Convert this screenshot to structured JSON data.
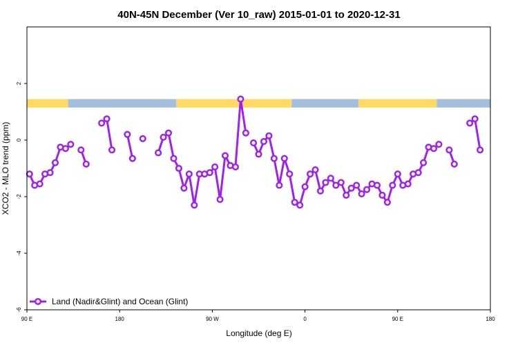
{
  "chart_data": {
    "type": "line",
    "title": "40N-45N December (Ver 10_raw)   2015-01-01 to 2020-12-31",
    "xlabel": "Longitude (deg E)",
    "ylabel": "XCO2 - MLO trend (ppm)",
    "xlim": [
      90,
      540
    ],
    "ylim": [
      -6,
      4
    ],
    "x_ticks": [
      {
        "value": 90,
        "label": "90 E"
      },
      {
        "value": 180,
        "label": "180"
      },
      {
        "value": 270,
        "label": "90 W"
      },
      {
        "value": 360,
        "label": "0"
      },
      {
        "value": 450,
        "label": "90 E"
      },
      {
        "value": 540,
        "label": "180"
      }
    ],
    "y_ticks": [
      {
        "value": -6,
        "label": "-6"
      },
      {
        "value": -4,
        "label": "-4"
      },
      {
        "value": -2,
        "label": "-2"
      },
      {
        "value": 0,
        "label": "0"
      },
      {
        "value": 2,
        "label": "2"
      }
    ],
    "legend": {
      "position": "bottom-left"
    },
    "series": [
      {
        "name": "Land (Nadir&Glint) and Ocean (Glint)",
        "color": "#a020f0",
        "segments": [
          [
            [
              92.5,
              -1.2
            ],
            [
              97.5,
              -1.6
            ],
            [
              102.5,
              -1.55
            ],
            [
              107.5,
              -1.2
            ],
            [
              112.5,
              -1.15
            ],
            [
              117.5,
              -0.8
            ],
            [
              122.5,
              -0.25
            ],
            [
              127.5,
              -0.3
            ],
            [
              132.5,
              -0.15
            ]
          ],
          [
            [
              142.5,
              -0.35
            ],
            [
              147.5,
              -0.85
            ]
          ],
          [
            [
              162.5,
              0.6
            ],
            [
              167.5,
              0.75
            ],
            [
              172.5,
              -0.35
            ]
          ],
          [
            [
              187.5,
              0.2
            ],
            [
              192.5,
              -0.65
            ]
          ],
          [
            [
              202.5,
              0.05
            ]
          ],
          [
            [
              217.5,
              -0.45
            ],
            [
              222.5,
              0.1
            ],
            [
              227.5,
              0.25
            ],
            [
              232.5,
              -0.65
            ],
            [
              237.5,
              -1.0
            ],
            [
              242.5,
              -1.7
            ],
            [
              247.5,
              -1.2
            ],
            [
              252.5,
              -2.3
            ],
            [
              257.5,
              -1.2
            ],
            [
              262.5,
              -1.2
            ],
            [
              267.5,
              -1.15
            ],
            [
              272.5,
              -0.95
            ],
            [
              277.5,
              -2.1
            ],
            [
              282.5,
              -0.55
            ],
            [
              287.5,
              -0.9
            ],
            [
              292.5,
              -0.95
            ],
            [
              297.5,
              1.45
            ],
            [
              302.5,
              0.25
            ]
          ],
          [
            [
              310,
              -0.1
            ],
            [
              315,
              -0.5
            ],
            [
              320,
              -0.05
            ],
            [
              325,
              0.15
            ],
            [
              330,
              -0.65
            ],
            [
              335,
              -1.6
            ],
            [
              340,
              -0.65
            ],
            [
              345,
              -1.2
            ],
            [
              350,
              -2.2
            ],
            [
              355,
              -2.3
            ],
            [
              360,
              -1.65
            ],
            [
              365,
              -1.2
            ],
            [
              370,
              -1.05
            ],
            [
              375,
              -1.8
            ],
            [
              380,
              -1.5
            ],
            [
              385,
              -1.35
            ],
            [
              390,
              -1.6
            ],
            [
              395,
              -1.5
            ],
            [
              400,
              -1.95
            ],
            [
              405,
              -1.7
            ],
            [
              410,
              -1.6
            ],
            [
              415,
              -1.9
            ],
            [
              420,
              -1.75
            ],
            [
              425,
              -1.55
            ],
            [
              430,
              -1.6
            ],
            [
              435,
              -1.95
            ],
            [
              440,
              -2.2
            ],
            [
              445,
              -1.6
            ],
            [
              450,
              -1.2
            ],
            [
              455,
              -1.6
            ],
            [
              460,
              -1.55
            ],
            [
              465,
              -1.2
            ],
            [
              470,
              -1.15
            ],
            [
              475,
              -0.8
            ],
            [
              480,
              -0.25
            ],
            [
              485,
              -0.3
            ],
            [
              490,
              -0.15
            ]
          ],
          [
            [
              500,
              -0.35
            ],
            [
              505,
              -0.85
            ]
          ],
          [
            [
              520,
              0.6
            ],
            [
              525,
              0.75
            ],
            [
              530,
              -0.35
            ]
          ]
        ]
      }
    ],
    "surface_bar": {
      "y_range": [
        1.15,
        1.45
      ],
      "colors": {
        "land": "#ffd966",
        "ocean": "#a4bede"
      },
      "segments": [
        {
          "x0": 90,
          "x1": 130,
          "type": "land"
        },
        {
          "x0": 130,
          "x1": 235,
          "type": "ocean"
        },
        {
          "x0": 235,
          "x1": 347,
          "type": "land"
        },
        {
          "x0": 347,
          "x1": 412,
          "type": "ocean"
        },
        {
          "x0": 412,
          "x1": 488,
          "type": "land"
        },
        {
          "x0": 488,
          "x1": 540,
          "type": "ocean"
        }
      ]
    }
  }
}
